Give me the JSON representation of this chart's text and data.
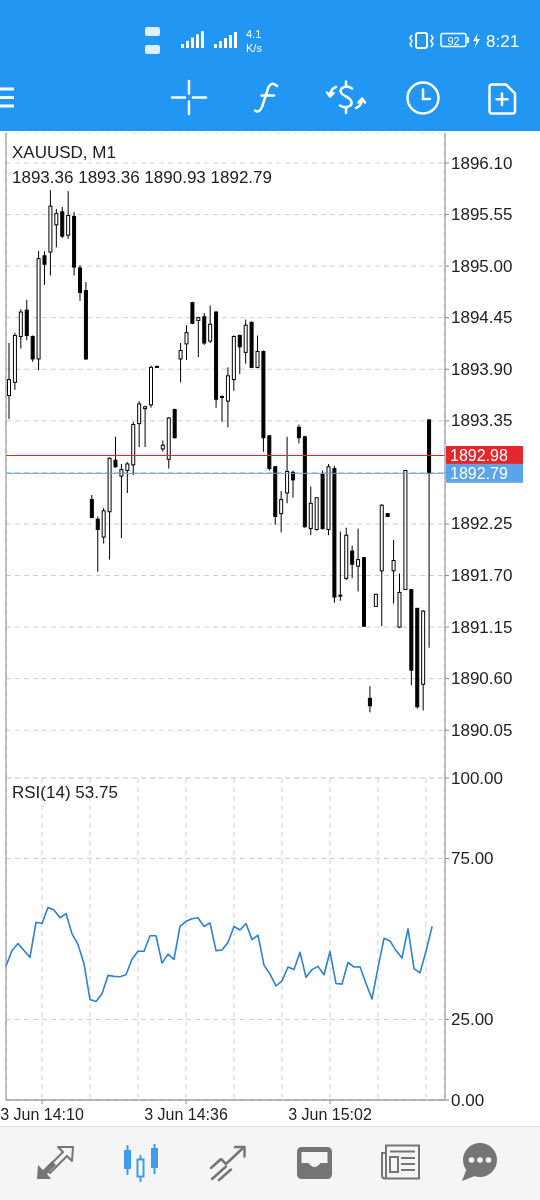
{
  "chart_data": [
    {
      "type": "candlestick",
      "title": "XAUUSD, M1",
      "subtitle": "1893.36 1893.36 1890.93 1892.79",
      "categories": [
        null,
        null,
        null,
        null,
        null,
        null,
        null,
        null,
        null,
        null,
        null,
        null,
        null,
        null,
        null,
        null,
        null,
        null,
        null,
        null,
        null,
        null,
        null,
        null,
        null,
        null,
        null,
        null,
        null,
        null,
        null,
        null,
        null,
        null,
        null,
        null,
        null,
        null,
        null,
        null,
        null,
        null,
        null,
        null,
        null,
        null,
        null,
        null,
        null,
        null,
        null,
        null,
        null,
        null,
        null,
        null,
        null,
        null,
        null,
        null,
        null,
        null,
        null,
        null,
        null,
        null,
        null,
        null,
        null,
        null,
        null,
        null
      ],
      "ohlc": [
        [
          1893.62,
          1894.18,
          1893.37,
          1893.79
        ],
        [
          1893.76,
          1894.29,
          1893.68,
          1894.26
        ],
        [
          1894.25,
          1894.54,
          1894.12,
          1894.51
        ],
        [
          1894.53,
          1894.64,
          1894.21,
          1894.26
        ],
        [
          1894.25,
          1894.26,
          1893.98,
          1894.01
        ],
        [
          1894.01,
          1895.16,
          1893.89,
          1895.08
        ],
        [
          1895.11,
          1895.16,
          1894.8,
          1895.02
        ],
        [
          1895.15,
          1895.81,
          1894.9,
          1895.64
        ],
        [
          1895.44,
          1895.61,
          1895.2,
          1895.56
        ],
        [
          1895.58,
          1895.63,
          1895.3,
          1895.32
        ],
        [
          1895.33,
          1895.8,
          1895.29,
          1895.54
        ],
        [
          1895.53,
          1895.58,
          1894.9,
          1894.99
        ],
        [
          1894.98,
          1895.01,
          1894.63,
          1894.72
        ],
        [
          1894.74,
          1894.83,
          1894.0,
          1894.01
        ],
        [
          1892.51,
          1892.56,
          1892.31,
          1892.32
        ],
        [
          1892.3,
          1892.33,
          1891.74,
          1892.19
        ],
        [
          1892.11,
          1892.42,
          1892.04,
          1892.39
        ],
        [
          1892.38,
          1892.96,
          1891.87,
          1892.95
        ],
        [
          1892.93,
          1893.18,
          1892.85,
          1892.86
        ],
        [
          1892.76,
          1892.89,
          1892.1,
          1892.83
        ],
        [
          1892.82,
          1892.91,
          1892.58,
          1892.89
        ],
        [
          1892.88,
          1893.34,
          1892.77,
          1893.31
        ],
        [
          1893.32,
          1893.56,
          1893.07,
          1893.53
        ],
        [
          1893.48,
          1893.51,
          1893.07,
          1893.5
        ],
        [
          1893.52,
          1893.94,
          1893.49,
          1893.92
        ],
        [
          1893.93,
          1893.94,
          1893.92,
          1893.93
        ],
        [
          1893.05,
          1893.14,
          1893.02,
          1893.09
        ],
        [
          1892.94,
          1893.39,
          1892.84,
          1893.38
        ],
        [
          1893.47,
          1893.48,
          1893.16,
          1893.17
        ],
        [
          1894.01,
          1894.18,
          1893.76,
          1894.1
        ],
        [
          1894.17,
          1894.37,
          1894.0,
          1894.29
        ],
        [
          1894.61,
          1894.62,
          1894.38,
          1894.39
        ],
        [
          1894.42,
          1894.46,
          1894.03,
          1894.45
        ],
        [
          1894.46,
          1894.5,
          1894.16,
          1894.18
        ],
        [
          1894.2,
          1894.58,
          1894.18,
          1894.38
        ],
        [
          1894.51,
          1894.52,
          1893.49,
          1893.58
        ],
        [
          1893.61,
          1893.62,
          1893.34,
          1893.61
        ],
        [
          1893.56,
          1893.92,
          1893.28,
          1893.83
        ],
        [
          1893.79,
          1894.26,
          1893.67,
          1894.25
        ],
        [
          1894.26,
          1894.27,
          1893.85,
          1894.14
        ],
        [
          1894.08,
          1894.43,
          1893.96,
          1894.37
        ],
        [
          1894.4,
          1894.41,
          1893.92,
          1893.92
        ],
        [
          1893.92,
          1894.26,
          1893.91,
          1894.09
        ],
        [
          1894.09,
          1894.1,
          1893.02,
          1893.17
        ],
        [
          1893.19,
          1893.2,
          1892.82,
          1892.84
        ],
        [
          1892.86,
          1892.87,
          1892.24,
          1892.33
        ],
        [
          1892.36,
          1892.6,
          1892.16,
          1892.51
        ],
        [
          1892.58,
          1893.18,
          1892.47,
          1892.81
        ],
        [
          1892.8,
          1892.82,
          1892.53,
          1892.72
        ],
        [
          1893.28,
          1893.31,
          1893.11,
          1893.17
        ],
        [
          1893.18,
          1893.19,
          1892.21,
          1892.22
        ],
        [
          1892.2,
          1892.65,
          1892.13,
          1892.47
        ],
        [
          1892.19,
          1892.53,
          1892.18,
          1892.53
        ],
        [
          1892.78,
          1892.82,
          1892.19,
          1892.2
        ],
        [
          1892.19,
          1892.89,
          1892.13,
          1892.86
        ],
        [
          1892.84,
          1892.87,
          1891.41,
          1891.47
        ],
        [
          1891.48,
          1892.17,
          1891.43,
          1891.49
        ],
        [
          1891.67,
          1892.21,
          1891.65,
          1892.13
        ],
        [
          1891.96,
          1892.02,
          1891.67,
          1891.82
        ],
        [
          1891.8,
          1892.2,
          1891.53,
          1891.87
        ],
        [
          1891.89,
          1891.9,
          1891.15,
          1891.16
        ],
        [
          1890.39,
          1890.52,
          1890.24,
          1890.31
        ],
        [
          1891.37,
          1891.5,
          1891.37,
          1891.5
        ],
        [
          1891.75,
          1892.46,
          1891.16,
          1892.45
        ],
        [
          1892.36,
          1892.36,
          1892.33,
          1892.33
        ],
        [
          1891.75,
          1892.08,
          1891.4,
          1891.86
        ],
        [
          1891.15,
          1891.72,
          1891.14,
          1891.52
        ],
        [
          1891.55,
          1892.82,
          1891.55,
          1892.82
        ],
        [
          1891.55,
          1891.55,
          1890.53,
          1890.69
        ],
        [
          1891.35,
          1891.35,
          1890.28,
          1890.3
        ],
        [
          1890.54,
          1891.33,
          1890.26,
          1891.32
        ],
        [
          1893.36,
          1893.36,
          1890.93,
          1892.79
        ]
      ],
      "color": "#000000",
      "ylim": [
        1889.54,
        1896.42
      ],
      "yticks": [
        1890.05,
        {
          "value": 1890.6,
          "label": "1890.60"
        },
        1891.15,
        {
          "value": 1891.7,
          "label": "1891.70"
        },
        1892.25,
        {
          "value": 1892.8,
          "label": null
        },
        1893.35,
        {
          "value": 1893.9,
          "label": "1893.90"
        },
        1894.45,
        {
          "value": 1895,
          "label": "1895.00"
        },
        1895.55,
        {
          "value": 1896.1,
          "label": "1896.10"
        }
      ],
      "grid": true,
      "tick_labels": "y",
      "ref_lines": [
        {
          "axis": "y",
          "value": 1892.98,
          "label": "1892.98",
          "color": "#e5262b"
        },
        {
          "axis": "y",
          "value": 1892.79,
          "label": "1892.79",
          "color": "#5aa5e8"
        }
      ],
      "annotations": [
        "4.1",
        "K/s",
        "92",
        "8:21"
      ]
    },
    {
      "type": "line",
      "title": "RSI(14) 53.75",
      "categories": [
        null,
        null,
        null,
        null,
        null,
        null,
        "3 Jun 14:10",
        null,
        null,
        null,
        null,
        null,
        null,
        null,
        null,
        null,
        null,
        null,
        null,
        null,
        null,
        null,
        null,
        null,
        null,
        null,
        null,
        null,
        null,
        null,
        "3 Jun 14:36",
        null,
        null,
        null,
        null,
        null,
        null,
        null,
        null,
        null,
        null,
        null,
        null,
        null,
        null,
        null,
        null,
        null,
        null,
        null,
        null,
        null,
        null,
        null,
        "3 Jun 15:02",
        null,
        null,
        null,
        null,
        null,
        null,
        null,
        null,
        null,
        null,
        null,
        null,
        null,
        null,
        null,
        null,
        null
      ],
      "series": [
        {
          "color": "#2f80cf",
          "values": [
            41.6,
            46.4,
            48.6,
            46.4,
            44.3,
            55.2,
            54.8,
            59.8,
            59.0,
            56.6,
            57.9,
            51.6,
            48.3,
            42.3,
            31.2,
            30.6,
            33.0,
            38.7,
            38.4,
            38.3,
            38.9,
            43.7,
            46.2,
            46.2,
            51.0,
            51.0,
            42.5,
            45.3,
            43.7,
            53.9,
            55.5,
            56.3,
            56.6,
            53.9,
            55.0,
            46.4,
            46.6,
            48.9,
            53.9,
            52.8,
            54.8,
            49.8,
            51.2,
            41.9,
            39.1,
            35.4,
            37.0,
            41.3,
            40.5,
            45.9,
            38.1,
            40.5,
            41.5,
            38.9,
            46.1,
            36.2,
            36.0,
            42.7,
            41.3,
            41.4,
            36.2,
            31.4,
            41.1,
            50.2,
            49.4,
            46.4,
            44.1,
            53.2,
            40.8,
            39.5,
            46.2,
            53.75
          ]
        }
      ],
      "ylim": [
        0,
        100
      ],
      "yticks": [
        {
          "value": 0,
          "label": "0.00"
        },
        {
          "value": 25,
          "label": "25.00"
        },
        {
          "value": 75,
          "label": "75.00"
        },
        {
          "value": 100,
          "label": "100.00"
        }
      ],
      "grid": true
    }
  ]
}
